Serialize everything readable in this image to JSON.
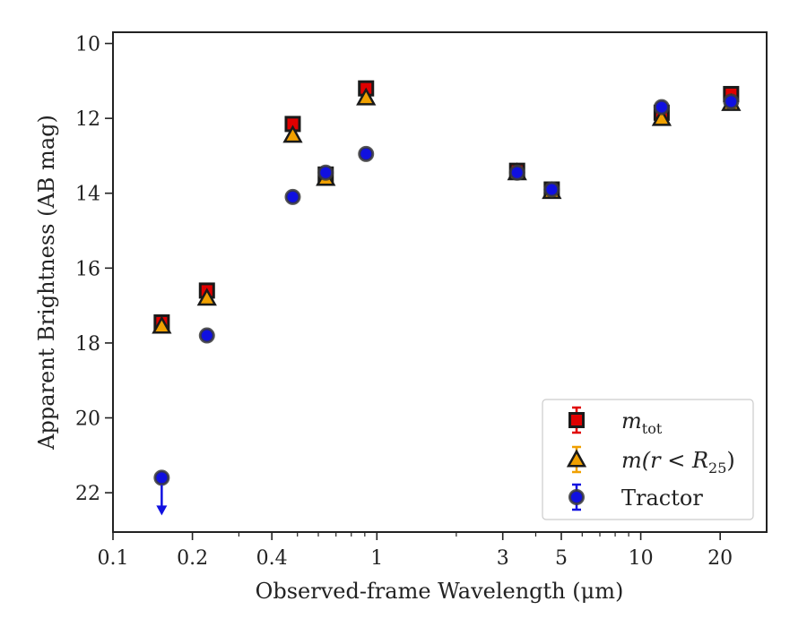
{
  "chart_data": {
    "type": "scatter",
    "title": "",
    "xlabel": "Observed-frame Wavelength (μm)",
    "ylabel": "Apparent Brightness (AB mag)",
    "x_scale": "log",
    "y_inverted": true,
    "xlim": [
      0.1,
      30
    ],
    "ylim": [
      10,
      23
    ],
    "x_ticks": [
      0.1,
      0.2,
      0.4,
      1,
      3,
      5,
      10,
      20
    ],
    "x_tick_labels": [
      "0.1",
      "0.2",
      "0.4",
      "1",
      "3",
      "5",
      "10",
      "20"
    ],
    "y_ticks": [
      10,
      12,
      14,
      16,
      18,
      20,
      22
    ],
    "y_tick_labels": [
      "10",
      "12",
      "14",
      "16",
      "18",
      "20",
      "22"
    ],
    "grid": false,
    "legend_position": "lower-right",
    "series": [
      {
        "name": "m_tot",
        "legend_label": {
          "main": "m",
          "sub": "tot"
        },
        "marker": "square",
        "color": "#e00000",
        "points": [
          {
            "x": 0.153,
            "y": 17.45
          },
          {
            "x": 0.227,
            "y": 16.6
          },
          {
            "x": 0.48,
            "y": 12.15
          },
          {
            "x": 0.64,
            "y": 13.5
          },
          {
            "x": 0.91,
            "y": 11.2
          },
          {
            "x": 3.4,
            "y": 13.4
          },
          {
            "x": 4.6,
            "y": 13.9
          },
          {
            "x": 12.0,
            "y": 11.85
          },
          {
            "x": 22.0,
            "y": 11.35
          }
        ]
      },
      {
        "name": "m(r<R25)",
        "legend_label": {
          "main": "m(r < R",
          "sub": "25",
          "tail": ")"
        },
        "marker": "triangle",
        "color": "#f0a000",
        "points": [
          {
            "x": 0.153,
            "y": 17.55
          },
          {
            "x": 0.227,
            "y": 16.8
          },
          {
            "x": 0.48,
            "y": 12.45
          },
          {
            "x": 0.64,
            "y": 13.6
          },
          {
            "x": 0.91,
            "y": 11.45
          },
          {
            "x": 3.4,
            "y": 13.45
          },
          {
            "x": 4.6,
            "y": 13.95
          },
          {
            "x": 12.0,
            "y": 12.0
          },
          {
            "x": 22.0,
            "y": 11.6
          }
        ]
      },
      {
        "name": "Tractor",
        "legend_label": {
          "main": "Tractor"
        },
        "marker": "circle",
        "color": "#1010e0",
        "points": [
          {
            "x": 0.153,
            "y": 21.6,
            "upper_limit": true
          },
          {
            "x": 0.227,
            "y": 17.8
          },
          {
            "x": 0.48,
            "y": 14.1
          },
          {
            "x": 0.64,
            "y": 13.45
          },
          {
            "x": 0.91,
            "y": 12.95
          },
          {
            "x": 3.4,
            "y": 13.45
          },
          {
            "x": 4.6,
            "y": 13.9
          },
          {
            "x": 12.0,
            "y": 11.7
          },
          {
            "x": 22.0,
            "y": 11.55
          }
        ]
      }
    ]
  }
}
